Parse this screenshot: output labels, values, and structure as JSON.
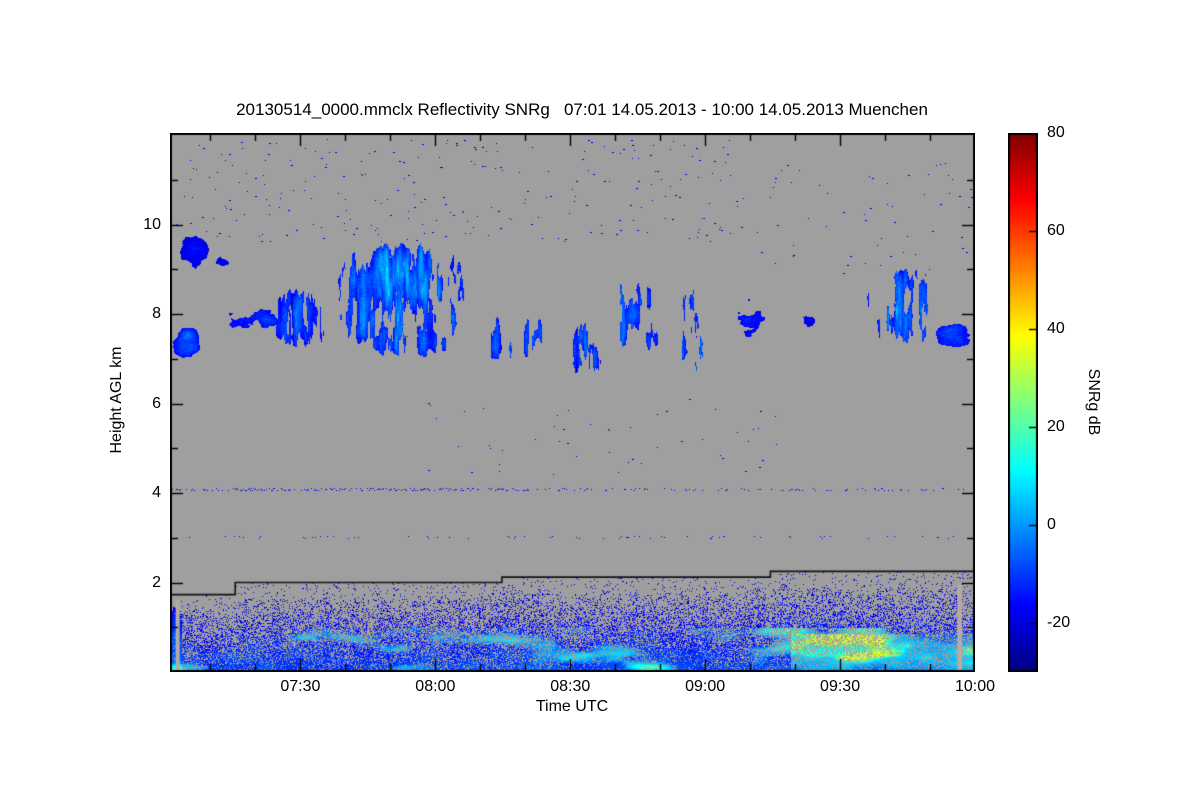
{
  "chart_data": {
    "type": "heatmap",
    "title": "20130514_0000.mmclx Reflectivity SNRg   07:01 14.05.2013 - 10:00 14.05.2013 Muenchen",
    "xlabel": "Time UTC",
    "ylabel": "Height AGL km",
    "time_start": "07:01",
    "time_end": "10:00",
    "date": "14.05.2013",
    "station": "Muenchen",
    "plot_bg": "#9f9f9f",
    "x_range_minutes": [
      0,
      179
    ],
    "y_range_km": [
      0,
      12.05
    ],
    "x_ticks": [
      {
        "minute": 29,
        "label": "07:30"
      },
      {
        "minute": 59,
        "label": "08:00"
      },
      {
        "minute": 89,
        "label": "08:30"
      },
      {
        "minute": 119,
        "label": "09:00"
      },
      {
        "minute": 149,
        "label": "09:30"
      },
      {
        "minute": 179,
        "label": "10:00"
      }
    ],
    "x_minor_step_minutes": 10,
    "y_ticks": [
      2,
      4,
      6,
      8,
      10
    ],
    "y_minor_step_km": 1,
    "colorbar": {
      "label": "SNRg dB",
      "range": [
        -30,
        80
      ],
      "ticks": [
        -20,
        0,
        20,
        40,
        60,
        80
      ],
      "colormap": "jet"
    },
    "features": {
      "cloud_bands": [
        {
          "t0": 0,
          "t1": 7,
          "h0": 6.85,
          "h1": 7.75,
          "density": 0.85,
          "base": -16,
          "bright": 10,
          "streak": false
        },
        {
          "t0": 1,
          "t1": 9,
          "h0": 8.9,
          "h1": 9.9,
          "density": 0.45,
          "base": -20,
          "bright": 5,
          "streak": false
        },
        {
          "t0": 8,
          "t1": 15,
          "h0": 8.95,
          "h1": 9.65,
          "density": 0.4,
          "base": -20,
          "bright": 5,
          "streak": false
        },
        {
          "t0": 11,
          "t1": 26,
          "h0": 7.55,
          "h1": 8.45,
          "density": 0.7,
          "base": -16,
          "bright": 9,
          "streak": false
        },
        {
          "t0": 22,
          "t1": 37,
          "h0": 7.1,
          "h1": 8.75,
          "density": 0.6,
          "base": -15,
          "bright": 10,
          "streak": true
        },
        {
          "t0": 34,
          "t1": 69,
          "h0": 6.9,
          "h1": 9.75,
          "density": 0.8,
          "base": -13,
          "bright": 17,
          "streak": true
        },
        {
          "t0": 68,
          "t1": 85,
          "h0": 6.9,
          "h1": 8.15,
          "density": 0.75,
          "base": -14,
          "bright": 13,
          "streak": true
        },
        {
          "t0": 85,
          "t1": 97,
          "h0": 6.4,
          "h1": 8.1,
          "density": 0.45,
          "base": -15,
          "bright": 11,
          "streak": true
        },
        {
          "t0": 97,
          "t1": 112,
          "h0": 6.95,
          "h1": 9.0,
          "density": 0.55,
          "base": -13,
          "bright": 14,
          "streak": true
        },
        {
          "t0": 112,
          "t1": 124,
          "h0": 6.35,
          "h1": 8.8,
          "density": 0.5,
          "base": -12,
          "bright": 16,
          "streak": true
        },
        {
          "t0": 124,
          "t1": 134,
          "h0": 7.35,
          "h1": 8.6,
          "density": 0.4,
          "base": -17,
          "bright": 7,
          "streak": false
        },
        {
          "t0": 140,
          "t1": 144,
          "h0": 7.5,
          "h1": 8.2,
          "density": 0.35,
          "base": -19,
          "bright": 4,
          "streak": false
        },
        {
          "t0": 153,
          "t1": 172,
          "h0": 7.15,
          "h1": 9.15,
          "density": 0.65,
          "base": -13,
          "bright": 14,
          "streak": true
        },
        {
          "t0": 169,
          "t1": 179,
          "h0": 7.2,
          "h1": 7.85,
          "density": 0.55,
          "base": -16,
          "bright": 8,
          "streak": false
        }
      ],
      "speckle_lines": [
        {
          "km": 4.08,
          "density": 0.45,
          "fade_after_minute": 80,
          "density_late": 0.2
        },
        {
          "km": 3.0,
          "density": 0.07,
          "fade_after_minute": 179,
          "density_late": 0.07
        }
      ],
      "scattered_specks": [
        {
          "count": 260,
          "t0": 1,
          "t1": 128,
          "h0": 9.6,
          "h1": 11.9
        },
        {
          "count": 50,
          "t0": 55,
          "t1": 135,
          "h0": 4.4,
          "h1": 6.2
        },
        {
          "count": 60,
          "t0": 130,
          "t1": 179,
          "h0": 8.9,
          "h1": 11.4
        }
      ],
      "step_line_points": [
        [
          0,
          1.73
        ],
        [
          14.5,
          1.73
        ],
        [
          14.5,
          2.0
        ],
        [
          73.8,
          2.0
        ],
        [
          73.8,
          2.12
        ],
        [
          133.5,
          2.12
        ],
        [
          133.5,
          2.25
        ],
        [
          179,
          2.25
        ]
      ],
      "boundary_layer": {
        "gap_below_line_km": 0.38,
        "spike_km": 0.3,
        "base_value": -21,
        "surface_boost": 13,
        "patch_threshold": 0.58,
        "strong_after_minute": 138,
        "strong_below_km": 0.85
      },
      "data_gaps": [
        {
          "minute": 1.7,
          "width_minutes": 0.9,
          "top_km": 1.62,
          "color": "#b5aba2"
        },
        {
          "minute": 175.6,
          "width_minutes": 1.1,
          "top_km": 1.95,
          "color": "#b5aba2"
        }
      ]
    }
  }
}
